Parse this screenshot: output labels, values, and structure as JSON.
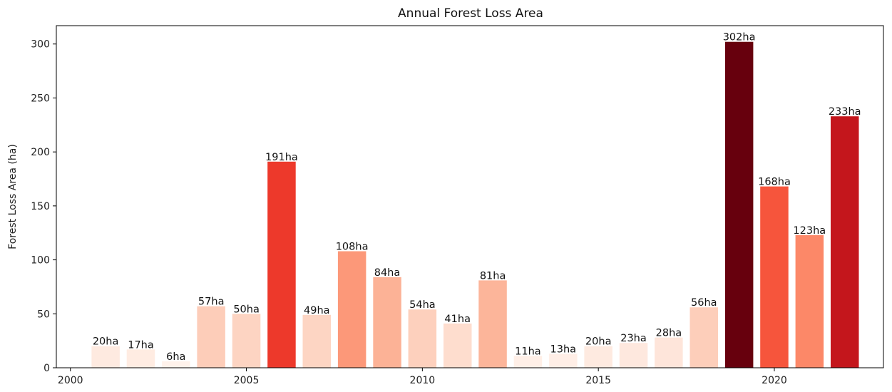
{
  "chart_data": {
    "type": "bar",
    "title": "Annual Forest Loss Area",
    "xlabel": "",
    "ylabel": "Forest Loss Area (ha)",
    "x": [
      2001,
      2002,
      2003,
      2004,
      2005,
      2006,
      2007,
      2008,
      2009,
      2010,
      2011,
      2012,
      2013,
      2014,
      2015,
      2016,
      2017,
      2018,
      2019,
      2020,
      2021,
      2022
    ],
    "values": [
      20,
      17,
      6,
      57,
      50,
      191,
      49,
      108,
      84,
      54,
      41,
      81,
      11,
      13,
      20,
      23,
      28,
      56,
      302,
      168,
      123,
      233
    ],
    "data_labels": [
      "20ha",
      "17ha",
      "6ha",
      "57ha",
      "50ha",
      "191ha",
      "49ha",
      "108ha",
      "84ha",
      "54ha",
      "41ha",
      "81ha",
      "11ha",
      "13ha",
      "20ha",
      "23ha",
      "28ha",
      "56ha",
      "302ha",
      "168ha",
      "123ha",
      "233ha"
    ],
    "xlim": [
      1999.6,
      2023.1
    ],
    "ylim": [
      0,
      317
    ],
    "x_ticks": [
      2000,
      2005,
      2010,
      2015,
      2020
    ],
    "x_tick_labels": [
      "2000",
      "2005",
      "2010",
      "2015",
      "2020"
    ],
    "y_ticks": [
      0,
      50,
      100,
      150,
      200,
      250,
      300
    ],
    "y_tick_labels": [
      "0",
      "50",
      "100",
      "150",
      "200",
      "250",
      "300"
    ],
    "grid": false,
    "legend": "none",
    "colormap": "Reds",
    "colors": {
      "axis": "#000000",
      "text": "#222222"
    }
  }
}
